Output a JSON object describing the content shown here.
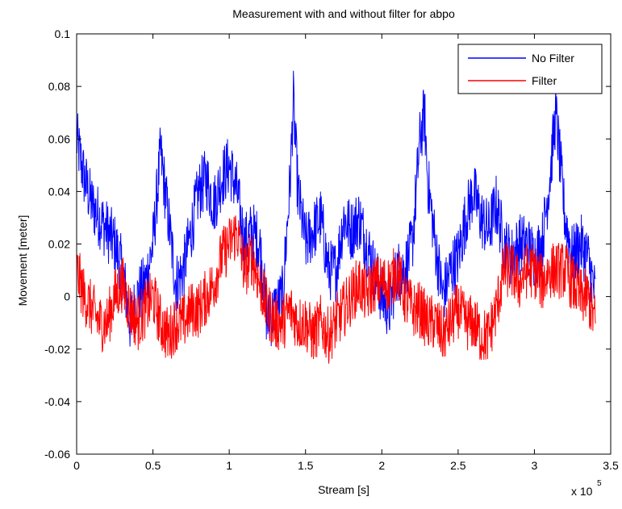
{
  "chart_data": {
    "type": "line",
    "title": "Measurement with and without filter for abpo",
    "xlabel": "Stream [s]",
    "ylabel": "Movement [meter]",
    "x_multiplier_label": "x 10",
    "x_multiplier_exponent": "5",
    "xlim": [
      0,
      3.5
    ],
    "ylim": [
      -0.06,
      0.1
    ],
    "x_unit_scale": 100000,
    "xticks": [
      "0",
      "0.5",
      "1",
      "1.5",
      "2",
      "2.5",
      "3",
      "3.5"
    ],
    "yticks": [
      "-0.06",
      "-0.04",
      "-0.02",
      "0",
      "0.02",
      "0.04",
      "0.06",
      "0.08",
      "0.1"
    ],
    "x_tick_values": [
      0,
      0.5,
      1,
      1.5,
      2,
      2.5,
      3,
      3.5
    ],
    "y_tick_values": [
      -0.06,
      -0.04,
      -0.02,
      0,
      0.02,
      0.04,
      0.06,
      0.08,
      0.1
    ],
    "grid": false,
    "legend_position": "top-right",
    "series": [
      {
        "name": "No Filter",
        "color": "#0000ff",
        "x": [
          0,
          0.05,
          0.1,
          0.15,
          0.2,
          0.25,
          0.3,
          0.35,
          0.4,
          0.45,
          0.5,
          0.55,
          0.6,
          0.65,
          0.7,
          0.75,
          0.8,
          0.85,
          0.9,
          0.95,
          1.0,
          1.05,
          1.1,
          1.15,
          1.2,
          1.25,
          1.3,
          1.35,
          1.4,
          1.42,
          1.45,
          1.5,
          1.55,
          1.6,
          1.65,
          1.7,
          1.75,
          1.8,
          1.85,
          1.9,
          1.95,
          2.0,
          2.05,
          2.1,
          2.15,
          2.2,
          2.25,
          2.28,
          2.3,
          2.35,
          2.4,
          2.45,
          2.5,
          2.55,
          2.6,
          2.65,
          2.7,
          2.75,
          2.8,
          2.85,
          2.9,
          2.95,
          3.0,
          3.05,
          3.1,
          3.14,
          3.2,
          3.25,
          3.3,
          3.35,
          3.4
        ],
        "y": [
          0.06,
          0.045,
          0.035,
          0.03,
          0.025,
          0.02,
          0.01,
          -0.01,
          0.0,
          0.005,
          0.02,
          0.055,
          0.03,
          0.005,
          0.01,
          0.025,
          0.04,
          0.045,
          0.035,
          0.045,
          0.05,
          0.04,
          0.02,
          0.025,
          0.02,
          -0.01,
          -0.005,
          0.0,
          0.045,
          0.075,
          0.04,
          0.02,
          0.025,
          0.03,
          0.01,
          0.01,
          0.03,
          0.025,
          0.03,
          0.02,
          0.01,
          0.0,
          -0.005,
          0.01,
          0.01,
          0.02,
          0.06,
          0.07,
          0.045,
          0.02,
          0.0,
          0.01,
          0.015,
          0.03,
          0.04,
          0.03,
          0.025,
          0.035,
          0.02,
          0.015,
          0.02,
          0.02,
          0.015,
          0.02,
          0.045,
          0.07,
          0.03,
          0.015,
          0.02,
          0.015,
          0.0
        ],
        "noise": 0.012
      },
      {
        "name": "Filter",
        "color": "#ff0000",
        "x": [
          0,
          0.05,
          0.1,
          0.15,
          0.2,
          0.25,
          0.3,
          0.35,
          0.4,
          0.45,
          0.5,
          0.55,
          0.6,
          0.65,
          0.7,
          0.75,
          0.8,
          0.85,
          0.9,
          0.95,
          1.0,
          1.05,
          1.1,
          1.15,
          1.2,
          1.25,
          1.3,
          1.35,
          1.4,
          1.45,
          1.5,
          1.55,
          1.6,
          1.65,
          1.7,
          1.75,
          1.8,
          1.85,
          1.9,
          1.95,
          2.0,
          2.05,
          2.1,
          2.15,
          2.2,
          2.25,
          2.3,
          2.35,
          2.4,
          2.45,
          2.5,
          2.55,
          2.6,
          2.65,
          2.7,
          2.75,
          2.8,
          2.85,
          2.9,
          2.95,
          3.0,
          3.05,
          3.1,
          3.15,
          3.2,
          3.25,
          3.3,
          3.35,
          3.4
        ],
        "y": [
          0.01,
          0.0,
          -0.005,
          -0.01,
          -0.01,
          0.0,
          0.005,
          -0.005,
          -0.01,
          -0.005,
          0.0,
          -0.01,
          -0.015,
          -0.01,
          -0.01,
          -0.005,
          -0.005,
          0.0,
          0.005,
          0.015,
          0.02,
          0.025,
          0.01,
          0.015,
          0.005,
          -0.005,
          -0.01,
          -0.01,
          -0.005,
          -0.01,
          -0.01,
          -0.015,
          -0.01,
          -0.015,
          -0.01,
          -0.005,
          0.0,
          0.005,
          0.0,
          0.005,
          0.005,
          0.005,
          0.01,
          0.0,
          -0.005,
          -0.005,
          -0.01,
          -0.01,
          -0.015,
          -0.01,
          -0.005,
          -0.01,
          -0.01,
          -0.015,
          -0.015,
          -0.005,
          0.01,
          0.01,
          0.005,
          0.01,
          0.01,
          0.005,
          0.01,
          0.01,
          0.01,
          0.005,
          0.0,
          0.0,
          -0.01
        ],
        "noise": 0.011
      }
    ]
  }
}
